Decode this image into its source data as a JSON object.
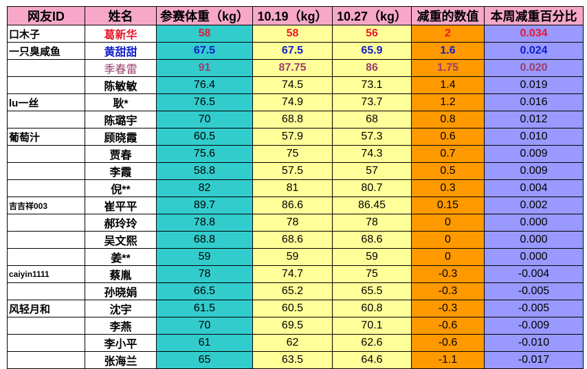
{
  "headers": [
    "网友ID",
    "姓名",
    "参赛体重（kg）",
    "10.19（kg）",
    "10.27（kg）",
    "减重的数值",
    "本周减重百分比"
  ],
  "rows": [
    {
      "id": "口木子",
      "name": "葛新华",
      "start": "58",
      "w1": "58",
      "w2": "56",
      "loss": "2",
      "pct": "0.034"
    },
    {
      "id": "一只臭咸鱼",
      "name": "黄甜甜",
      "start": "67.5",
      "w1": "67.5",
      "w2": "65.9",
      "loss": "1.6",
      "pct": "0.024"
    },
    {
      "id": "",
      "name": "季春雷",
      "start": "91",
      "w1": "87.75",
      "w2": "86",
      "loss": "1.75",
      "pct": "0.020"
    },
    {
      "id": "",
      "name": "陈敏敏",
      "start": "76.4",
      "w1": "74.5",
      "w2": "73.1",
      "loss": "1.4",
      "pct": "0.019"
    },
    {
      "id": "lu一丝",
      "name": "耿*",
      "start": "76.5",
      "w1": "74.9",
      "w2": "73.7",
      "loss": "1.2",
      "pct": "0.016"
    },
    {
      "id": "",
      "name": "陈璐宇",
      "start": "70",
      "w1": "68.8",
      "w2": "68",
      "loss": "0.8",
      "pct": "0.012"
    },
    {
      "id": "葡萄汁",
      "name": "顾晓霞",
      "start": "60.5",
      "w1": "57.9",
      "w2": "57.3",
      "loss": "0.6",
      "pct": "0.010"
    },
    {
      "id": "",
      "name": "贾春",
      "start": "75.6",
      "w1": "75",
      "w2": "74.3",
      "loss": "0.7",
      "pct": "0.009"
    },
    {
      "id": "",
      "name": "李霞",
      "start": "58.8",
      "w1": "57.5",
      "w2": "57",
      "loss": "0.5",
      "pct": "0.009"
    },
    {
      "id": "",
      "name": "倪**",
      "start": "82",
      "w1": "81",
      "w2": "80.7",
      "loss": "0.3",
      "pct": "0.004"
    },
    {
      "id": "吉吉祥003",
      "name": "崔平平",
      "start": "89.7",
      "w1": "86.6",
      "w2": "86.45",
      "loss": "0.15",
      "pct": "0.002"
    },
    {
      "id": "",
      "name": "郝玲玲",
      "start": "78.8",
      "w1": "78",
      "w2": "78",
      "loss": "0",
      "pct": "0.000"
    },
    {
      "id": "",
      "name": "吴文熙",
      "start": "68.8",
      "w1": "68.6",
      "w2": "68.6",
      "loss": "0",
      "pct": "0.000"
    },
    {
      "id": "",
      "name": "姜**",
      "start": "59",
      "w1": "59",
      "w2": "59",
      "loss": "0",
      "pct": "0.000"
    },
    {
      "id": "caiyin1111",
      "name": "蔡胤",
      "start": "78",
      "w1": "74.7",
      "w2": "75",
      "loss": "-0.3",
      "pct": "-0.004"
    },
    {
      "id": "",
      "name": "孙晓娟",
      "start": "66.5",
      "w1": "65.2",
      "w2": "65.5",
      "loss": "-0.3",
      "pct": "-0.005"
    },
    {
      "id": "风轻月和",
      "name": "沈宇",
      "start": "61.5",
      "w1": "60.5",
      "w2": "60.8",
      "loss": "-0.3",
      "pct": "-0.005"
    },
    {
      "id": "",
      "name": "李燕",
      "start": "70",
      "w1": "69.5",
      "w2": "70.1",
      "loss": "-0.6",
      "pct": "-0.009"
    },
    {
      "id": "",
      "name": "李小平",
      "start": "61",
      "w1": "62",
      "w2": "62.6",
      "loss": "-0.6",
      "pct": "-0.010"
    },
    {
      "id": "",
      "name": "张海兰",
      "start": "65",
      "w1": "63.5",
      "w2": "64.6",
      "loss": "-1.1",
      "pct": "-0.017"
    }
  ],
  "colors": {
    "header": "#f7a8c8",
    "start_col": "#33cccc",
    "weight_cols": "#ffff99",
    "loss_col": "#ff9900",
    "pct_col": "#9999ff",
    "top1": "#e8192c",
    "top2": "#1020c8",
    "top3": "#9b3e6a"
  }
}
